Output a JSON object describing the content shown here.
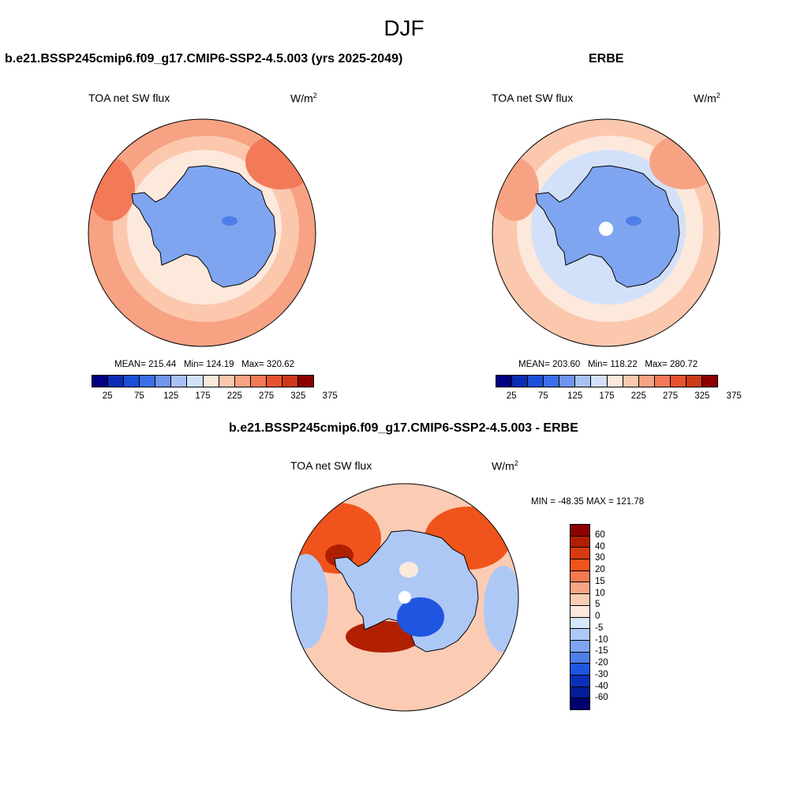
{
  "title": "DJF",
  "panels": {
    "model": {
      "title": "b.e21.BSSP245cmip6.f09_g17.CMIP6-SSP2-4.5.003 (yrs 2025-2049)",
      "variable": "TOA net SW flux",
      "units_base": "W/m",
      "units_exp": "2",
      "mean_label": "MEAN=",
      "mean": "215.44",
      "min_label": "Min=",
      "min": "124.19",
      "max_label": "Max=",
      "max": "320.62"
    },
    "obs": {
      "title": "ERBE",
      "variable": "TOA net SW flux",
      "units_base": "W/m",
      "units_exp": "2",
      "mean_label": "MEAN=",
      "mean": "203.60",
      "min_label": "Min=",
      "min": "118.22",
      "max_label": "Max=",
      "max": "280.72"
    },
    "diff": {
      "title": "b.e21.BSSP245cmip6.f09_g17.CMIP6-SSP2-4.5.003 - ERBE",
      "variable": "TOA net SW flux",
      "units_base": "W/m",
      "units_exp": "2",
      "minmax_text": "MIN = -48.35  MAX = 121.78"
    }
  },
  "colorbar_abs": {
    "ticks": [
      "25",
      "75",
      "125",
      "175",
      "225",
      "275",
      "325",
      "375"
    ],
    "colors": [
      "#000080",
      "#0a2db4",
      "#1a4fd9",
      "#3a6fe8",
      "#6f95ef",
      "#a8c2f5",
      "#d2e1f9",
      "#fde8dc",
      "#fbc8ae",
      "#f7a283",
      "#f27a58",
      "#e8532f",
      "#cc3a18",
      "#8c0000"
    ]
  },
  "colorbar_diff": {
    "ticks": [
      "60",
      "40",
      "30",
      "20",
      "15",
      "10",
      "5",
      "0",
      "-5",
      "-10",
      "-15",
      "-20",
      "-30",
      "-40",
      "-60"
    ],
    "colors": [
      "#8c0000",
      "#b02000",
      "#d83a10",
      "#f0541c",
      "#f47a50",
      "#f8a486",
      "#fbcbb4",
      "#fde9dc",
      "#d8e6fa",
      "#aec8f6",
      "#7fa5f0",
      "#4f7ee8",
      "#1f55e0",
      "#0a30b8",
      "#031c98",
      "#000070"
    ]
  },
  "maps": {
    "model": {
      "ocean_base": "#f7a283",
      "ocean_mid": "#fbc8ae",
      "ocean_low": "#fde8dc",
      "ice": "#7fa5f0",
      "ice_dark": "#4f7ee8",
      "warm": "#f27a58"
    },
    "obs": {
      "ocean_base": "#fbc8ae",
      "ocean_mid": "#fde8dc",
      "ocean_low": "#d2e1f9",
      "ice": "#7fa5f0",
      "ice_dark": "#4f7ee8",
      "warm": "#f7a283"
    },
    "diff": {
      "base": "#fbcbb4",
      "pos1": "#f0541c",
      "pos2": "#b02000",
      "neg1": "#aec8f6",
      "neg2": "#1f55e0",
      "zero": "#fde9dc"
    }
  }
}
